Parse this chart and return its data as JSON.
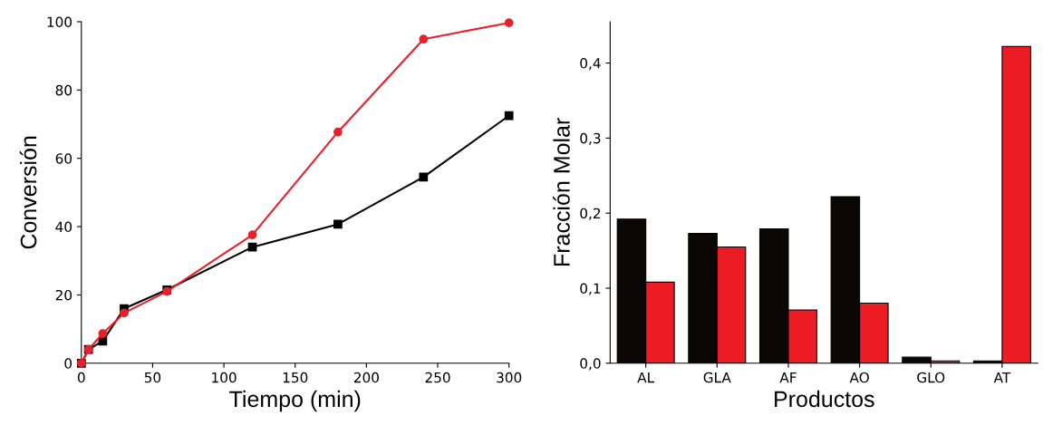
{
  "chart_data": [
    {
      "type": "line",
      "xlabel": "Tiempo (min)",
      "ylabel": "Conversión",
      "x": [
        0,
        5,
        15,
        30,
        60,
        120,
        180,
        240,
        300
      ],
      "series": [
        {
          "color": "#000000",
          "marker": "square",
          "values": [
            0,
            4,
            6.5,
            16,
            21.5,
            34,
            40.7,
            54.5,
            72.5
          ]
        },
        {
          "color": "#e8202a",
          "marker": "circle",
          "values": [
            0,
            4,
            8.7,
            14.7,
            21,
            37.6,
            67.7,
            94.9,
            99.7
          ]
        }
      ],
      "xlim": [
        0,
        300
      ],
      "xticks": [
        0,
        50,
        100,
        150,
        200,
        250,
        300
      ],
      "ylim": [
        0,
        100
      ],
      "yticks": [
        0,
        20,
        40,
        60,
        80,
        100
      ],
      "grid": false,
      "legend": false
    },
    {
      "type": "bar",
      "xlabel": "Productos",
      "ylabel": "Fracción Molar",
      "categories": [
        "AL",
        "GLA",
        "AF",
        "AO",
        "GLO",
        "AT"
      ],
      "series": [
        {
          "color": "#0a0806",
          "values": [
            0.192,
            0.173,
            0.179,
            0.222,
            0.008,
            0.003
          ]
        },
        {
          "color": "#ed1c24",
          "values": [
            0.108,
            0.155,
            0.071,
            0.08,
            0.003,
            0.422
          ]
        }
      ],
      "ylim": [
        0,
        0.455
      ],
      "yticks": [
        {
          "value": 0,
          "label": "0,0"
        },
        {
          "value": 0.1,
          "label": "0,1"
        },
        {
          "value": 0.2,
          "label": "0,2"
        },
        {
          "value": 0.3,
          "label": "0,3"
        },
        {
          "value": 0.4,
          "label": "0,4"
        }
      ],
      "grid": false,
      "legend": false
    }
  ]
}
